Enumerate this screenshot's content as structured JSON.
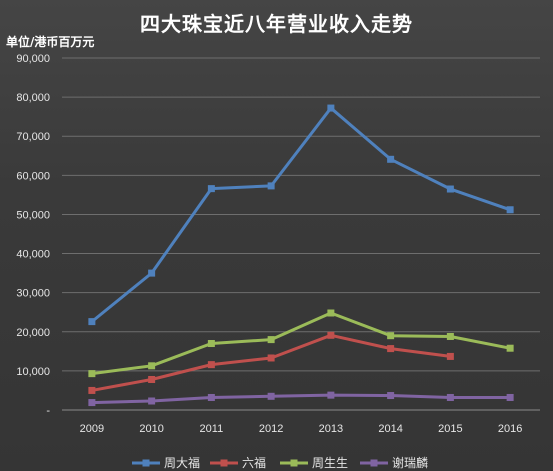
{
  "chart_data": {
    "type": "line",
    "title": "四大珠宝近八年营业收入走势",
    "unit_label": "单位/港币百万元",
    "x": [
      "2009",
      "2010",
      "2011",
      "2012",
      "2013",
      "2014",
      "2015",
      "2016"
    ],
    "y_ticks": [
      "-",
      "10,000",
      "20,000",
      "30,000",
      "40,000",
      "50,000",
      "60,000",
      "70,000",
      "80,000",
      "90,000"
    ],
    "ylim": [
      0,
      90000
    ],
    "grid": true,
    "legend_position": "bottom",
    "series": [
      {
        "name": "周大福",
        "color": "#4f81bd",
        "values": [
          22600,
          35000,
          56600,
          57300,
          77200,
          64100,
          56500,
          51200
        ]
      },
      {
        "name": "六福",
        "color": "#c0504d",
        "values": [
          5000,
          7800,
          11600,
          13300,
          19100,
          15700,
          13700,
          null
        ]
      },
      {
        "name": "周生生",
        "color": "#9bbb59",
        "values": [
          9300,
          11300,
          17000,
          18000,
          24800,
          19000,
          18800,
          15800
        ]
      },
      {
        "name": "谢瑞麟",
        "color": "#8064a2",
        "values": [
          1900,
          2300,
          3200,
          3500,
          3800,
          3700,
          3200,
          3200
        ]
      }
    ]
  }
}
